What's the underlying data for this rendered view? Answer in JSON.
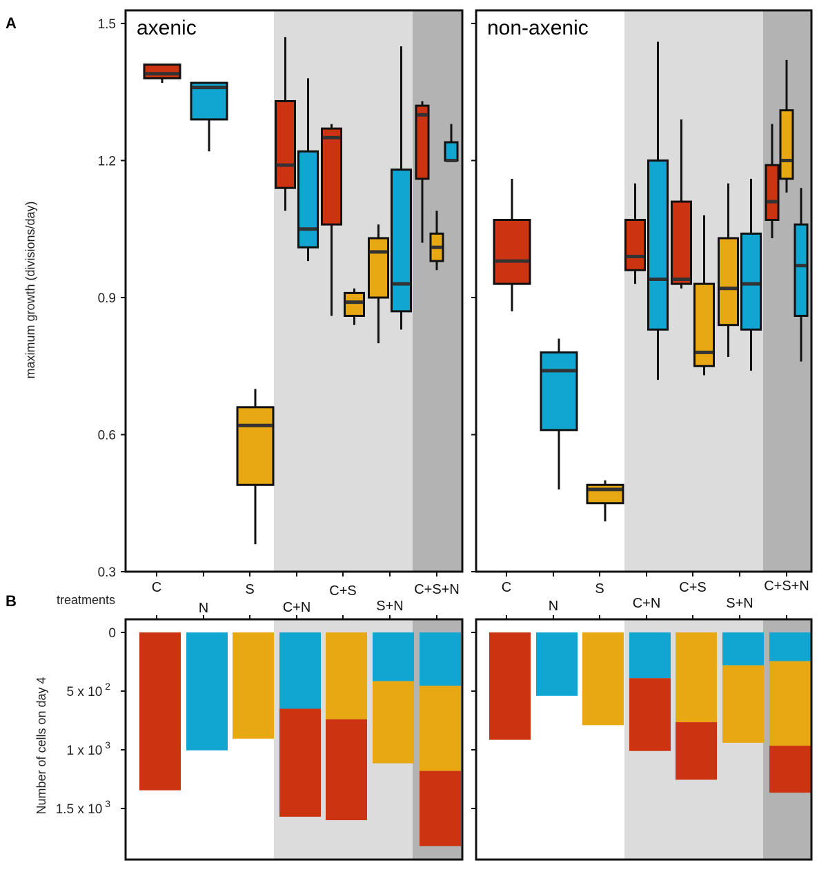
{
  "figure": {
    "panel_a_label": "A",
    "panel_b_label": "B",
    "treatments_label": "treatments",
    "panel_titles": [
      "axenic",
      "non-axenic"
    ]
  },
  "colors": {
    "C": "#cc3311",
    "N": "#11a5d1",
    "S": "#e8a812",
    "shade_light": "#dcdcdc",
    "shade_dark": "#b3b3b3",
    "median": "#333333",
    "frame": "#111111"
  },
  "chart_data": [
    {
      "type": "box",
      "ylabel": "maximum growth (divisions/day)",
      "ylim": [
        0.3,
        1.5
      ],
      "yticks": [
        "0.3",
        "0.6",
        "0.9",
        "1.2",
        "1.5"
      ],
      "categories": [
        "C",
        "N",
        "S",
        "C+N",
        "C+S",
        "S+N",
        "C+S+N"
      ],
      "panels": [
        {
          "name": "axenic",
          "groups": [
            {
              "treatment": "C",
              "boxes": [
                {
                  "species": "C",
                  "min": 1.37,
                  "q1": 1.38,
                  "median": 1.39,
                  "q3": 1.41,
                  "max": 1.41
                }
              ]
            },
            {
              "treatment": "N",
              "boxes": [
                {
                  "species": "N",
                  "min": 1.22,
                  "q1": 1.29,
                  "median": 1.36,
                  "q3": 1.37,
                  "max": 1.37
                }
              ]
            },
            {
              "treatment": "S",
              "boxes": [
                {
                  "species": "S",
                  "min": 0.36,
                  "q1": 0.49,
                  "median": 0.62,
                  "q3": 0.66,
                  "max": 0.7
                }
              ]
            },
            {
              "treatment": "C+N",
              "boxes": [
                {
                  "species": "C",
                  "min": 1.09,
                  "q1": 1.14,
                  "median": 1.19,
                  "q3": 1.33,
                  "max": 1.47
                },
                {
                  "species": "N",
                  "min": 0.98,
                  "q1": 1.01,
                  "median": 1.05,
                  "q3": 1.22,
                  "max": 1.38
                }
              ]
            },
            {
              "treatment": "C+S",
              "boxes": [
                {
                  "species": "C",
                  "min": 0.86,
                  "q1": 1.06,
                  "median": 1.25,
                  "q3": 1.27,
                  "max": 1.28
                },
                {
                  "species": "S",
                  "min": 0.84,
                  "q1": 0.86,
                  "median": 0.89,
                  "q3": 0.91,
                  "max": 0.92
                }
              ]
            },
            {
              "treatment": "S+N",
              "boxes": [
                {
                  "species": "S",
                  "min": 0.8,
                  "q1": 0.9,
                  "median": 1.0,
                  "q3": 1.03,
                  "max": 1.06
                },
                {
                  "species": "N",
                  "min": 0.83,
                  "q1": 0.87,
                  "median": 0.93,
                  "q3": 1.18,
                  "max": 1.45
                }
              ]
            },
            {
              "treatment": "C+S+N",
              "boxes": [
                {
                  "species": "C",
                  "min": 1.02,
                  "q1": 1.16,
                  "median": 1.3,
                  "q3": 1.32,
                  "max": 1.33
                },
                {
                  "species": "S",
                  "min": 0.96,
                  "q1": 0.98,
                  "median": 1.01,
                  "q3": 1.04,
                  "max": 1.09
                },
                {
                  "species": "N",
                  "min": 1.2,
                  "q1": 1.2,
                  "median": 1.2,
                  "q3": 1.24,
                  "max": 1.28
                }
              ]
            }
          ]
        },
        {
          "name": "non-axenic",
          "groups": [
            {
              "treatment": "C",
              "boxes": [
                {
                  "species": "C",
                  "min": 0.87,
                  "q1": 0.93,
                  "median": 0.98,
                  "q3": 1.07,
                  "max": 1.16
                }
              ]
            },
            {
              "treatment": "N",
              "boxes": [
                {
                  "species": "N",
                  "min": 0.48,
                  "q1": 0.61,
                  "median": 0.74,
                  "q3": 0.78,
                  "max": 0.81
                }
              ]
            },
            {
              "treatment": "S",
              "boxes": [
                {
                  "species": "S",
                  "min": 0.41,
                  "q1": 0.45,
                  "median": 0.48,
                  "q3": 0.49,
                  "max": 0.5
                }
              ]
            },
            {
              "treatment": "C+N",
              "boxes": [
                {
                  "species": "C",
                  "min": 0.93,
                  "q1": 0.96,
                  "median": 0.99,
                  "q3": 1.07,
                  "max": 1.15
                },
                {
                  "species": "N",
                  "min": 0.72,
                  "q1": 0.83,
                  "median": 0.94,
                  "q3": 1.2,
                  "max": 1.46
                }
              ]
            },
            {
              "treatment": "C+S",
              "boxes": [
                {
                  "species": "C",
                  "min": 0.92,
                  "q1": 0.93,
                  "median": 0.94,
                  "q3": 1.11,
                  "max": 1.29
                },
                {
                  "species": "S",
                  "min": 0.73,
                  "q1": 0.75,
                  "median": 0.78,
                  "q3": 0.93,
                  "max": 1.08
                }
              ]
            },
            {
              "treatment": "S+N",
              "boxes": [
                {
                  "species": "S",
                  "min": 0.77,
                  "q1": 0.84,
                  "median": 0.92,
                  "q3": 1.03,
                  "max": 1.15
                },
                {
                  "species": "N",
                  "min": 0.74,
                  "q1": 0.83,
                  "median": 0.93,
                  "q3": 1.04,
                  "max": 1.16
                }
              ]
            },
            {
              "treatment": "C+S+N",
              "boxes": [
                {
                  "species": "C",
                  "min": 1.03,
                  "q1": 1.07,
                  "median": 1.11,
                  "q3": 1.19,
                  "max": 1.28
                },
                {
                  "species": "S",
                  "min": 1.13,
                  "q1": 1.16,
                  "median": 1.2,
                  "q3": 1.31,
                  "max": 1.42
                },
                {
                  "species": "N",
                  "min": 0.76,
                  "q1": 0.86,
                  "median": 0.97,
                  "q3": 1.06,
                  "max": 1.14
                }
              ]
            }
          ]
        }
      ]
    },
    {
      "type": "stacked-bar",
      "ylabel": "Number of cells on day 4",
      "yaxis": "inverted",
      "ylim": [
        0,
        1900
      ],
      "yticks": [
        {
          "value": 0,
          "label": "0"
        },
        {
          "value": 500,
          "label": "5 x 10 2"
        },
        {
          "value": 1000,
          "label": "1 x 10 3"
        },
        {
          "value": 1500,
          "label": "1.5 x 10 3"
        }
      ],
      "categories": [
        "C",
        "N",
        "S",
        "C+N",
        "C+S",
        "S+N",
        "C+S+N"
      ],
      "stack_order_top_to_bottom": [
        "N",
        "S",
        "C"
      ],
      "panels": [
        {
          "name": "axenic",
          "bars": [
            {
              "treatment": "C",
              "segments": [
                {
                  "species": "C",
                  "value": 1345
                }
              ]
            },
            {
              "treatment": "N",
              "segments": [
                {
                  "species": "N",
                  "value": 1005
                }
              ]
            },
            {
              "treatment": "S",
              "segments": [
                {
                  "species": "S",
                  "value": 905
                }
              ]
            },
            {
              "treatment": "C+N",
              "segments": [
                {
                  "species": "N",
                  "value": 650
                },
                {
                  "species": "C",
                  "value": 920
                }
              ]
            },
            {
              "treatment": "C+S",
              "segments": [
                {
                  "species": "S",
                  "value": 740
                },
                {
                  "species": "C",
                  "value": 860
                }
              ]
            },
            {
              "treatment": "S+N",
              "segments": [
                {
                  "species": "N",
                  "value": 415
                },
                {
                  "species": "S",
                  "value": 700
                }
              ]
            },
            {
              "treatment": "C+S+N",
              "segments": [
                {
                  "species": "N",
                  "value": 455
                },
                {
                  "species": "S",
                  "value": 725
                },
                {
                  "species": "C",
                  "value": 640
                }
              ]
            }
          ]
        },
        {
          "name": "non-axenic",
          "bars": [
            {
              "treatment": "C",
              "segments": [
                {
                  "species": "C",
                  "value": 915
                }
              ]
            },
            {
              "treatment": "N",
              "segments": [
                {
                  "species": "N",
                  "value": 540
                }
              ]
            },
            {
              "treatment": "S",
              "segments": [
                {
                  "species": "S",
                  "value": 790
                }
              ]
            },
            {
              "treatment": "C+N",
              "segments": [
                {
                  "species": "N",
                  "value": 390
                },
                {
                  "species": "C",
                  "value": 620
                }
              ]
            },
            {
              "treatment": "C+S",
              "segments": [
                {
                  "species": "S",
                  "value": 765
                },
                {
                  "species": "C",
                  "value": 490
                }
              ]
            },
            {
              "treatment": "S+N",
              "segments": [
                {
                  "species": "N",
                  "value": 280
                },
                {
                  "species": "S",
                  "value": 660
                }
              ]
            },
            {
              "treatment": "C+S+N",
              "segments": [
                {
                  "species": "N",
                  "value": 245
                },
                {
                  "species": "S",
                  "value": 720
                },
                {
                  "species": "C",
                  "value": 400
                }
              ]
            }
          ]
        }
      ]
    }
  ]
}
